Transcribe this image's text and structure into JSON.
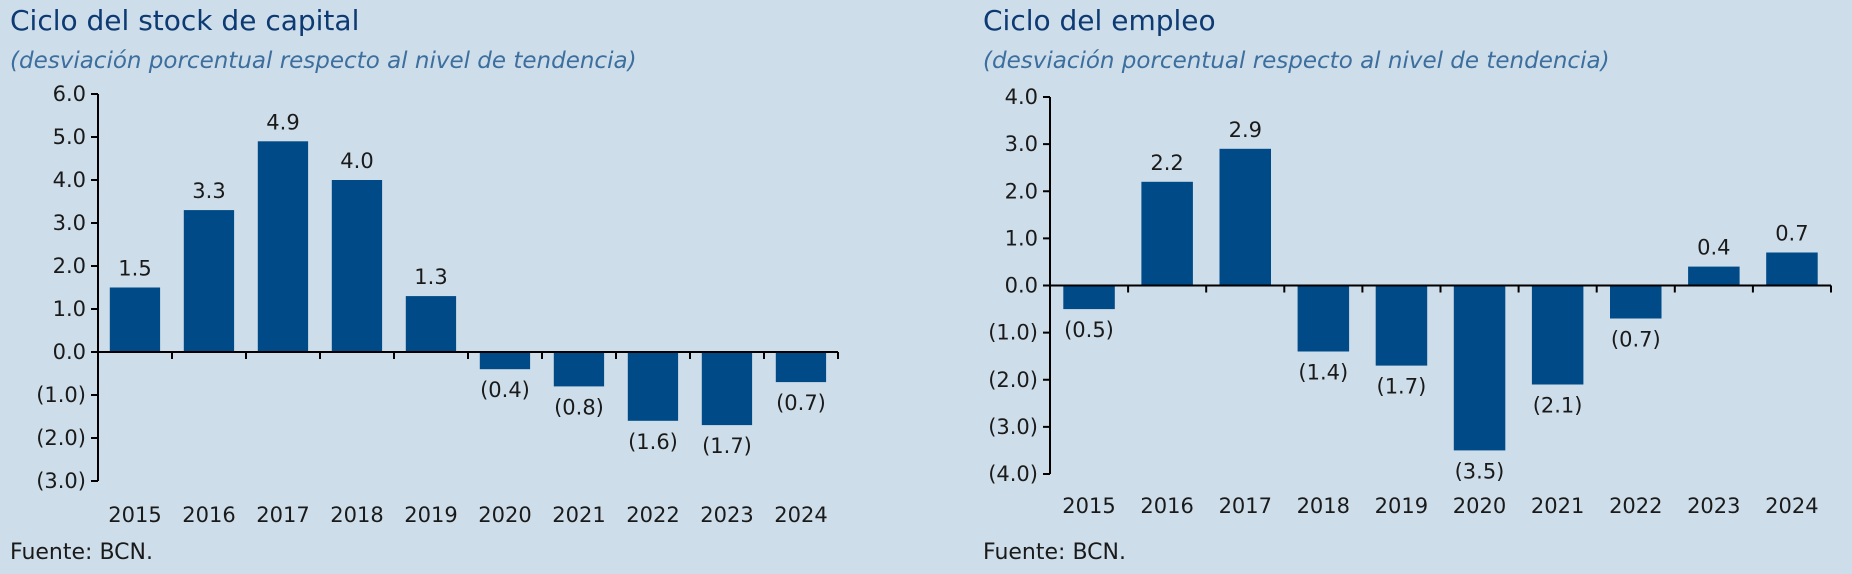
{
  "charts": [
    {
      "title": "Ciclo del stock de capital",
      "subtitle": "(desviación porcentual respecto al nivel de tendencia)",
      "source": "Fuente: BCN."
    },
    {
      "title": "Ciclo del empleo",
      "subtitle": "(desviación porcentual respecto al nivel de tendencia)",
      "source": "Fuente: BCN."
    }
  ],
  "chart_data": [
    {
      "type": "bar",
      "title": "Ciclo del stock de capital",
      "subtitle": "(desviación porcentual respecto al nivel de tendencia)",
      "categories": [
        "2015",
        "2016",
        "2017",
        "2018",
        "2019",
        "2020",
        "2021",
        "2022",
        "2023",
        "2024"
      ],
      "values": [
        1.5,
        3.3,
        4.9,
        4.0,
        1.3,
        -0.4,
        -0.8,
        -1.6,
        -1.7,
        -0.7
      ],
      "value_labels": [
        "1.5",
        "3.3",
        "4.9",
        "4.0",
        "1.3",
        "(0.4)",
        "(0.8)",
        "(1.6)",
        "(1.7)",
        "(0.7)"
      ],
      "yticks": [
        6,
        5,
        4,
        3,
        2,
        1,
        0,
        -1,
        -2,
        -3
      ],
      "ytick_labels": [
        "6.0",
        "5.0",
        "4.0",
        "3.0",
        "2.0",
        "1.0",
        "0.0",
        "(1.0)",
        "(2.0)",
        "(3.0)"
      ],
      "ylim": [
        -3,
        6
      ],
      "xlabel": "",
      "ylabel": "",
      "grid": false,
      "bar_color": "#004a87"
    },
    {
      "type": "bar",
      "title": "Ciclo del empleo",
      "subtitle": "(desviación porcentual respecto al nivel de tendencia)",
      "categories": [
        "2015",
        "2016",
        "2017",
        "2018",
        "2019",
        "2020",
        "2021",
        "2022",
        "2023",
        "2024"
      ],
      "values": [
        -0.5,
        2.2,
        2.9,
        -1.4,
        -1.7,
        -3.5,
        -2.1,
        -0.7,
        0.4,
        0.7
      ],
      "value_labels": [
        "(0.5)",
        "2.2",
        "2.9",
        "(1.4)",
        "(1.7)",
        "(3.5)",
        "(2.1)",
        "(0.7)",
        "0.4",
        "0.7"
      ],
      "yticks": [
        4,
        3,
        2,
        1,
        0,
        -1,
        -2,
        -3,
        -4
      ],
      "ytick_labels": [
        "4.0",
        "3.0",
        "2.0",
        "1.0",
        "0.0",
        "(1.0)",
        "(2.0)",
        "(3.0)",
        "(4.0)"
      ],
      "ylim": [
        -4,
        4
      ],
      "xlabel": "",
      "ylabel": "",
      "grid": false,
      "bar_color": "#004a87"
    }
  ]
}
